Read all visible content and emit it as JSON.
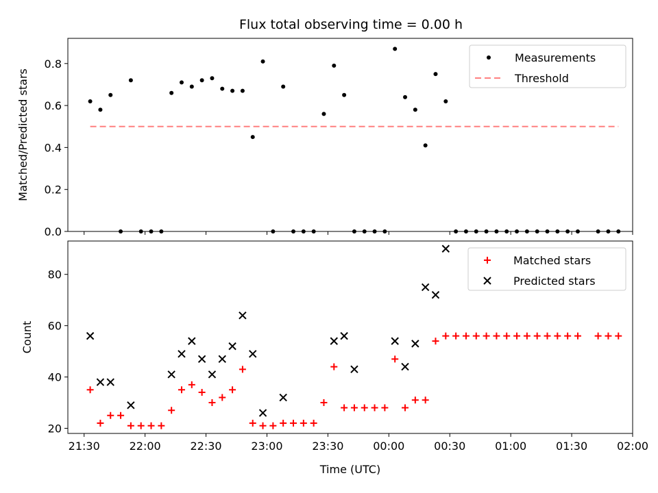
{
  "chart_data": {
    "title": "Flux total observing time = 0.00 h",
    "xlabel": "Time (UTC)",
    "x_ticks": [
      "21:30",
      "22:00",
      "22:30",
      "23:00",
      "23:30",
      "00:00",
      "00:30",
      "01:00",
      "01:30",
      "02:00"
    ],
    "x_tick_minutes": [
      0,
      30,
      60,
      90,
      120,
      150,
      180,
      210,
      240,
      270
    ],
    "xlim_minutes": [
      -8,
      270
    ],
    "x_origin_label": "21:30",
    "x_unit": "minutes after 21:30 UTC",
    "panels": [
      {
        "type": "scatter",
        "ylabel": "Matched/Predicted stars",
        "ylim": [
          0,
          0.92
        ],
        "y_ticks": [
          0.0,
          0.2,
          0.4,
          0.6,
          0.8
        ],
        "y_tick_labels": [
          "0.0",
          "0.2",
          "0.4",
          "0.6",
          "0.8"
        ],
        "legend": {
          "placement": "top-right",
          "entries": [
            "Measurements",
            "Threshold"
          ]
        },
        "series": [
          {
            "name": "Measurements",
            "kind": "scatter",
            "marker": "dot",
            "color": "#000000",
            "x": [
              3,
              8,
              13,
              18,
              23,
              28,
              33,
              38,
              43,
              48,
              53,
              58,
              63,
              68,
              73,
              78,
              83,
              88,
              93,
              98,
              103,
              108,
              113,
              118,
              123,
              128,
              133,
              138,
              143,
              148,
              153,
              158,
              163,
              168,
              173,
              178,
              183,
              188,
              193,
              198,
              203,
              208,
              213,
              218,
              223,
              228,
              233,
              238,
              243,
              253,
              258,
              263
            ],
            "y": [
              0.62,
              0.58,
              0.65,
              0.0,
              0.72,
              0.0,
              0.0,
              0.0,
              0.66,
              0.71,
              0.69,
              0.72,
              0.73,
              0.68,
              0.67,
              0.67,
              0.45,
              0.81,
              0.0,
              0.69,
              0.0,
              0.0,
              0.0,
              0.56,
              0.79,
              0.65,
              0.0,
              0.0,
              0.0,
              0.0,
              0.87,
              0.64,
              0.58,
              0.41,
              0.75,
              0.62,
              0.0,
              0.0,
              0.0,
              0.0,
              0.0,
              0.0,
              0.0,
              0.0,
              0.0,
              0.0,
              0.0,
              0.0,
              0.0,
              0.0,
              0.0,
              0.0
            ]
          },
          {
            "name": "Threshold",
            "kind": "line",
            "style": "dashed",
            "color": "#ff7f7f",
            "x": [
              3,
              263
            ],
            "y": [
              0.5,
              0.5
            ]
          }
        ]
      },
      {
        "type": "scatter",
        "ylabel": "Count",
        "ylim": [
          18,
          93
        ],
        "y_ticks": [
          20,
          40,
          60,
          80
        ],
        "y_tick_labels": [
          "20",
          "40",
          "60",
          "80"
        ],
        "legend": {
          "placement": "top-right",
          "entries": [
            "Matched stars",
            "Predicted stars"
          ]
        },
        "series": [
          {
            "name": "Matched stars",
            "kind": "scatter",
            "marker": "plus",
            "color": "#ff0000",
            "x": [
              3,
              8,
              13,
              18,
              23,
              28,
              33,
              38,
              43,
              48,
              53,
              58,
              63,
              68,
              73,
              78,
              83,
              88,
              93,
              98,
              103,
              108,
              113,
              118,
              123,
              128,
              133,
              138,
              143,
              148,
              153,
              158,
              163,
              168,
              173,
              178,
              183,
              188,
              193,
              198,
              203,
              208,
              213,
              218,
              223,
              228,
              233,
              238,
              243,
              253,
              258,
              263
            ],
            "y": [
              35,
              22,
              25,
              25,
              21,
              21,
              21,
              21,
              27,
              35,
              37,
              34,
              30,
              32,
              35,
              43,
              22,
              21,
              21,
              22,
              22,
              22,
              22,
              30,
              44,
              28,
              28,
              28,
              28,
              28,
              47,
              28,
              31,
              31,
              54,
              56,
              56,
              56,
              56,
              56,
              56,
              56,
              56,
              56,
              56,
              56,
              56,
              56,
              56,
              56,
              56,
              56
            ]
          },
          {
            "name": "Predicted stars",
            "kind": "scatter",
            "marker": "cross",
            "color": "#000000",
            "x": [
              3,
              8,
              13,
              23,
              43,
              48,
              53,
              58,
              63,
              68,
              73,
              78,
              83,
              88,
              98,
              123,
              128,
              133,
              153,
              158,
              163,
              168,
              173,
              178
            ],
            "y": [
              56,
              38,
              38,
              29,
              41,
              49,
              54,
              47,
              41,
              47,
              52,
              64,
              49,
              26,
              32,
              54,
              56,
              43,
              54,
              44,
              53,
              75,
              72,
              90
            ]
          }
        ]
      }
    ]
  }
}
